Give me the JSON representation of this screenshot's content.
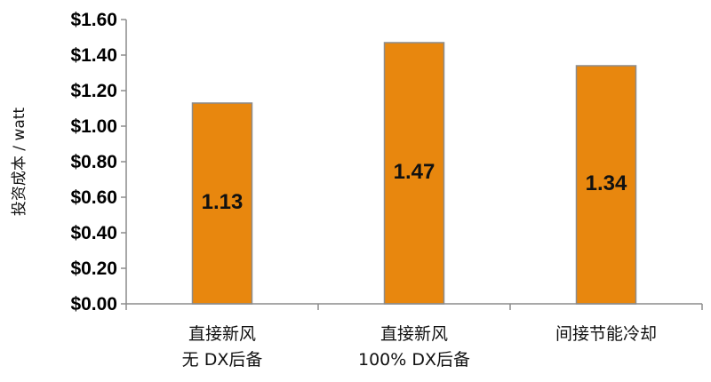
{
  "chart_data": {
    "type": "bar",
    "ylabel": "投资成本 / watt",
    "ylim": [
      0,
      1.6
    ],
    "yticks": [
      "$0.00",
      "$0.20",
      "$0.40",
      "$0.60",
      "$0.80",
      "$1.00",
      "$1.20",
      "$1.40",
      "$1.60"
    ],
    "categories": [
      [
        "直接新风",
        "无 DX后备"
      ],
      [
        "直接新风",
        "100% DX后备"
      ],
      [
        "间接节能冷却"
      ]
    ],
    "values": [
      1.13,
      1.47,
      1.34
    ],
    "data_labels": [
      "1.13",
      "1.47",
      "1.34"
    ],
    "bar_color": "#E8870E",
    "bar_edge_color": "#8C8C8C",
    "grid": false,
    "legend": "none"
  }
}
